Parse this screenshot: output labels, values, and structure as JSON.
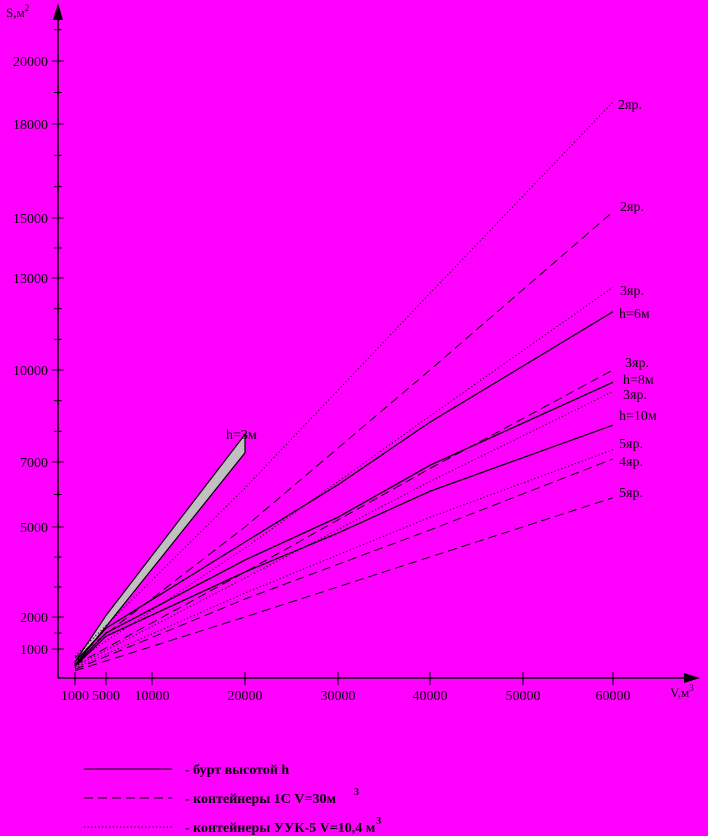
{
  "chart_data": {
    "type": "line",
    "xlabel": "V,м3",
    "ylabel": "S,м2",
    "xlim": [
      0,
      70000
    ],
    "ylim": [
      0,
      21500
    ],
    "x_ticks": [
      {
        "value": 1000,
        "label": "1000"
      },
      {
        "value": 5000,
        "label": "5000"
      },
      {
        "value": 10000,
        "label": "10000"
      },
      {
        "value": 20000,
        "label": "20000"
      },
      {
        "value": 30000,
        "label": "30000"
      },
      {
        "value": 40000,
        "label": "40000"
      },
      {
        "value": 50000,
        "label": "50000"
      },
      {
        "value": 60000,
        "label": "60000"
      }
    ],
    "y_ticks": [
      {
        "value": 1000,
        "label": "1000"
      },
      {
        "value": 2000,
        "label": "2000"
      },
      {
        "value": 5000,
        "label": "5000"
      },
      {
        "value": 7000,
        "label": "7000"
      },
      {
        "value": 10000,
        "label": "10000"
      },
      {
        "value": 13000,
        "label": "13000"
      },
      {
        "value": 15000,
        "label": "15000"
      },
      {
        "value": 18000,
        "label": "18000"
      },
      {
        "value": 20000,
        "label": "20000"
      }
    ],
    "series": [
      {
        "name": "2яр.",
        "style": "dotted",
        "x": [
          1000,
          20000,
          40000,
          60000
        ],
        "y": [
          750,
          6200,
          12500,
          18700
        ]
      },
      {
        "name": "2яр.",
        "style": "dashed",
        "x": [
          1000,
          20000,
          40000,
          60000
        ],
        "y": [
          700,
          5000,
          10000,
          15200
        ]
      },
      {
        "name": "3яр.",
        "style": "dotted",
        "x": [
          1000,
          20000,
          40000,
          60000
        ],
        "y": [
          550,
          4300,
          8500,
          12700
        ]
      },
      {
        "name": "h=6м",
        "style": "solid",
        "x": [
          1000,
          5000,
          20000,
          30000,
          40000,
          60000
        ],
        "y": [
          550,
          1650,
          4500,
          6300,
          8300,
          11900
        ]
      },
      {
        "name": "3яр.",
        "style": "dashed",
        "x": [
          1000,
          20000,
          40000,
          60000
        ],
        "y": [
          450,
          3500,
          6800,
          10000
        ]
      },
      {
        "name": "h=8м",
        "style": "solid",
        "x": [
          1000,
          5000,
          20000,
          30000,
          40000,
          60000
        ],
        "y": [
          450,
          1500,
          3900,
          5300,
          6900,
          9600
        ]
      },
      {
        "name": "3яр.",
        "style": "dotted",
        "x": [
          1000,
          20000,
          40000,
          60000
        ],
        "y": [
          400,
          3300,
          6400,
          9300
        ]
      },
      {
        "name": "h=10м",
        "style": "solid",
        "x": [
          1000,
          5000,
          20000,
          30000,
          40000,
          60000
        ],
        "y": [
          400,
          1400,
          3500,
          4800,
          6100,
          8200
        ]
      },
      {
        "name": "5яр.",
        "style": "dotted",
        "x": [
          1000,
          20000,
          40000,
          60000
        ],
        "y": [
          350,
          2800,
          5300,
          7400
        ]
      },
      {
        "name": "4яр.",
        "style": "dashed",
        "x": [
          1000,
          20000,
          40000,
          60000
        ],
        "y": [
          300,
          2600,
          4900,
          7100
        ]
      },
      {
        "name": "5яр.",
        "style": "dashed",
        "x": [
          1000,
          20000,
          40000,
          60000
        ],
        "y": [
          250,
          2000,
          4000,
          5900
        ]
      }
    ],
    "band": {
      "name": "h=3м",
      "upper": {
        "x": [
          1000,
          5000,
          20000
        ],
        "y": [
          550,
          2050,
          7900
        ]
      },
      "lower": {
        "x": [
          1000,
          5000,
          20000
        ],
        "y": [
          450,
          1700,
          7300
        ]
      }
    },
    "legend": {
      "placement": "bottom",
      "items": [
        {
          "style": "solid",
          "label": "- бурт высотой h"
        },
        {
          "style": "dashed",
          "label": "- контейнеры 1С V=30м",
          "sup": "3"
        },
        {
          "style": "dotted",
          "label": "- контейнеры УУК-5 V=10,4 м",
          "sup": "3"
        }
      ]
    },
    "colors": {
      "background": "#ff00ff",
      "ink": "#000000",
      "band_fill": "#c0c0c0"
    }
  }
}
